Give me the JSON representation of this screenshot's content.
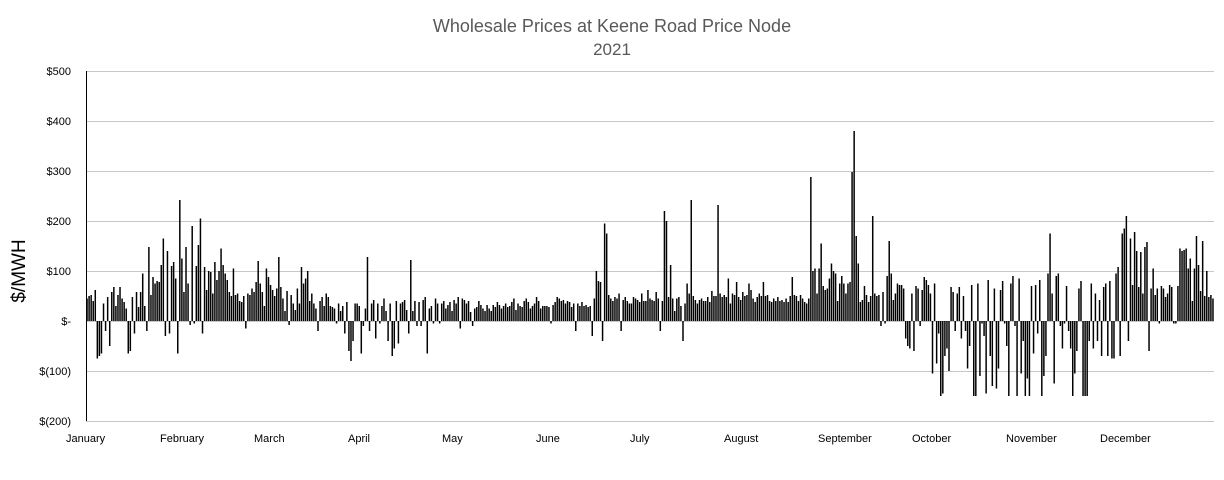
{
  "chart_data": {
    "type": "bar",
    "title": "Wholesale Prices at Keene Road Price Node",
    "subtitle": "2021",
    "xlabel": "",
    "ylabel": "$/MWH",
    "ylim": [
      -200,
      500
    ],
    "yticks": [
      500,
      400,
      300,
      200,
      100,
      0,
      -100,
      -200
    ],
    "ytick_labels": [
      "$500",
      "$400",
      "$300",
      "$200",
      "$100",
      "$-",
      "$(100)",
      "$(200)"
    ],
    "xtick_labels": [
      "January",
      "February",
      "March",
      "April",
      "May",
      "June",
      "July",
      "August",
      "September",
      "October",
      "November",
      "December"
    ],
    "grid": "horizontal",
    "bar_color": "#000000",
    "series": [
      {
        "values": [
          45,
          50,
          52,
          40,
          62,
          -75,
          -70,
          -65,
          35,
          -20,
          48,
          -50,
          58,
          68,
          30,
          52,
          68,
          45,
          38,
          25,
          -65,
          -60,
          48,
          -25,
          58,
          28,
          58,
          95,
          30,
          -20,
          148,
          52,
          88,
          75,
          80,
          78,
          112,
          165,
          -30,
          140,
          -25,
          110,
          118,
          85,
          -65,
          242,
          125,
          58,
          148,
          75,
          -8,
          190,
          -5,
          110,
          152,
          205,
          -25,
          108,
          62,
          100,
          98,
          55,
          118,
          82,
          100,
          145,
          112,
          95,
          82,
          58,
          50,
          105,
          52,
          55,
          40,
          38,
          50,
          -15,
          55,
          52,
          65,
          58,
          78,
          120,
          75,
          58,
          30,
          105,
          88,
          72,
          62,
          50,
          65,
          128,
          68,
          45,
          20,
          60,
          -8,
          52,
          35,
          22,
          65,
          35,
          108,
          75,
          85,
          100,
          40,
          55,
          35,
          25,
          -20,
          40,
          48,
          30,
          55,
          48,
          30,
          28,
          25,
          -5,
          35,
          20,
          30,
          -25,
          38,
          -60,
          -80,
          -40,
          35,
          35,
          30,
          -65,
          -10,
          25,
          128,
          -20,
          35,
          42,
          -35,
          35,
          -5,
          30,
          45,
          20,
          -40,
          35,
          -70,
          -55,
          40,
          -45,
          35,
          38,
          42,
          22,
          -25,
          122,
          20,
          40,
          -10,
          38,
          -10,
          42,
          48,
          -65,
          25,
          30,
          -5,
          45,
          35,
          -5,
          35,
          40,
          25,
          32,
          38,
          20,
          42,
          35,
          48,
          -15,
          45,
          42,
          35,
          40,
          18,
          -10,
          25,
          28,
          40,
          32,
          25,
          20,
          32,
          25,
          20,
          32,
          28,
          38,
          32,
          25,
          30,
          35,
          28,
          30,
          38,
          45,
          22,
          35,
          30,
          28,
          40,
          45,
          38,
          25,
          30,
          35,
          48,
          40,
          25,
          30,
          30,
          30,
          28,
          -5,
          32,
          38,
          48,
          45,
          40,
          42,
          35,
          40,
          38,
          28,
          35,
          -20,
          35,
          30,
          38,
          30,
          32,
          28,
          30,
          -30,
          45,
          100,
          80,
          78,
          -40,
          195,
          175,
          52,
          45,
          40,
          48,
          45,
          55,
          -20,
          42,
          48,
          40,
          35,
          35,
          48,
          45,
          42,
          38,
          55,
          40,
          40,
          62,
          45,
          42,
          40,
          58,
          45,
          -20,
          40,
          220,
          200,
          48,
          112,
          45,
          20,
          45,
          48,
          30,
          -40,
          35,
          75,
          55,
          242,
          50,
          42,
          35,
          42,
          45,
          40,
          40,
          48,
          38,
          60,
          50,
          50,
          232,
          55,
          48,
          52,
          48,
          85,
          35,
          55,
          52,
          78,
          48,
          42,
          58,
          50,
          52,
          75,
          62,
          45,
          38,
          48,
          55,
          50,
          78,
          50,
          52,
          40,
          38,
          45,
          40,
          48,
          40,
          42,
          38,
          45,
          38,
          50,
          88,
          52,
          50,
          40,
          52,
          45,
          38,
          35,
          45,
          288,
          100,
          105,
          55,
          105,
          155,
          70,
          62,
          65,
          85,
          115,
          100,
          95,
          40,
          75,
          90,
          75,
          55,
          75,
          78,
          298,
          380,
          170,
          115,
          38,
          42,
          70,
          52,
          38,
          50,
          210,
          55,
          50,
          52,
          -10,
          58,
          -5,
          90,
          160,
          95,
          42,
          55,
          75,
          72,
          72,
          65,
          -35,
          -50,
          -55,
          55,
          -60,
          70,
          65,
          -10,
          62,
          88,
          82,
          72,
          55,
          -105,
          75,
          -85,
          -25,
          -150,
          -145,
          -70,
          -55,
          -100,
          68,
          58,
          -20,
          55,
          68,
          -35,
          50,
          -20,
          -95,
          -50,
          72,
          -150,
          -150,
          75,
          -110,
          -5,
          -30,
          -145,
          82,
          -70,
          -130,
          65,
          -135,
          -95,
          62,
          80,
          -5,
          -50,
          -150,
          75,
          90,
          -10,
          -150,
          85,
          -105,
          -40,
          -150,
          -115,
          -150,
          70,
          -65,
          72,
          -25,
          82,
          -150,
          -110,
          -70,
          95,
          175,
          55,
          -125,
          90,
          95,
          -10,
          -55,
          -5,
          70,
          -20,
          -55,
          -150,
          -105,
          -60,
          65,
          80,
          -150,
          -150,
          -150,
          -40,
          75,
          -55,
          55,
          -40,
          42,
          -70,
          68,
          75,
          -70,
          80,
          -75,
          -75,
          95,
          108,
          -70,
          175,
          185,
          210,
          -40,
          165,
          72,
          178,
          140,
          68,
          138,
          55,
          148,
          158,
          -60,
          65,
          105,
          52,
          65,
          -5,
          70,
          65,
          48,
          55,
          72,
          68,
          -5,
          -5,
          70,
          145,
          140,
          142,
          145,
          105,
          125,
          40,
          105,
          170,
          112,
          60,
          160,
          50,
          100,
          48,
          52,
          45
        ]
      }
    ]
  }
}
